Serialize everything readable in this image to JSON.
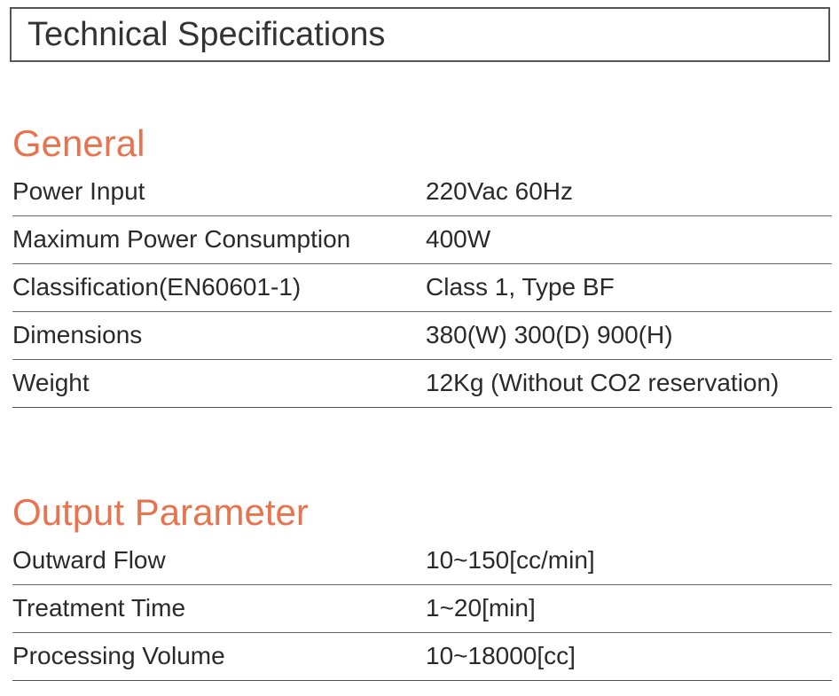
{
  "header": {
    "title": "Technical Specifications"
  },
  "sections": [
    {
      "title": "General",
      "rows": [
        [
          "Power Input",
          "220Vac 60Hz"
        ],
        [
          "Maximum Power Consumption",
          "400W"
        ],
        [
          "Classification(EN60601-1)",
          "Class 1, Type BF"
        ],
        [
          "Dimensions",
          "380(W) 300(D) 900(H)"
        ],
        [
          "Weight",
          "12Kg (Without CO2 reservation)"
        ]
      ]
    },
    {
      "title": "Output Parameter",
      "rows": [
        [
          "Outward Flow",
          "10~150[cc/min]"
        ],
        [
          "Treatment Time",
          "1~20[min]"
        ],
        [
          "Processing Volume",
          "10~18000[cc]"
        ]
      ]
    }
  ]
}
